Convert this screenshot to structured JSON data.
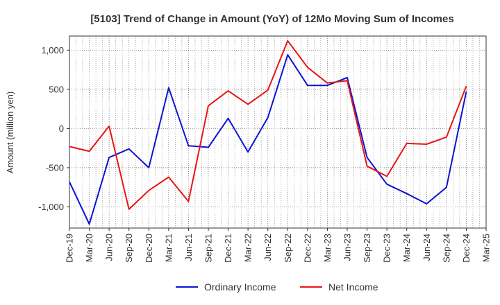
{
  "chart_data": {
    "type": "line",
    "title": "[5103]  Trend of Change in Amount (YoY) of 12Mo Moving Sum of Incomes",
    "ylabel": "Amount (million yen)",
    "xlabel": "",
    "categories": [
      "Dec-19",
      "Mar-20",
      "Jun-20",
      "Sep-20",
      "Dec-20",
      "Mar-21",
      "Jun-21",
      "Sep-21",
      "Dec-21",
      "Mar-22",
      "Jun-22",
      "Sep-22",
      "Dec-22",
      "Mar-23",
      "Jun-23",
      "Sep-23",
      "Dec-23",
      "Mar-24",
      "Jun-24",
      "Sep-24",
      "Dec-24",
      "Mar-25"
    ],
    "ylim": [
      -1270,
      1180
    ],
    "yticks": [
      1000,
      500,
      0,
      -500,
      -1000
    ],
    "ytick_labels": [
      "1,000",
      "500",
      "0",
      "-500",
      "-1,000"
    ],
    "grid": true,
    "legend_position": "bottom",
    "series": [
      {
        "name": "Ordinary Income",
        "color": "#0a14d2",
        "values": [
          -680,
          -1220,
          -370,
          -260,
          -500,
          520,
          -220,
          -240,
          130,
          -300,
          140,
          940,
          550,
          550,
          650,
          -370,
          -710,
          -830,
          -960,
          -750,
          470,
          null
        ]
      },
      {
        "name": "Net Income",
        "color": "#e81414",
        "values": [
          -230,
          -290,
          30,
          -1030,
          -790,
          -620,
          -930,
          290,
          480,
          310,
          490,
          1120,
          780,
          580,
          610,
          -480,
          -610,
          -190,
          -200,
          -110,
          540,
          null
        ]
      }
    ]
  }
}
